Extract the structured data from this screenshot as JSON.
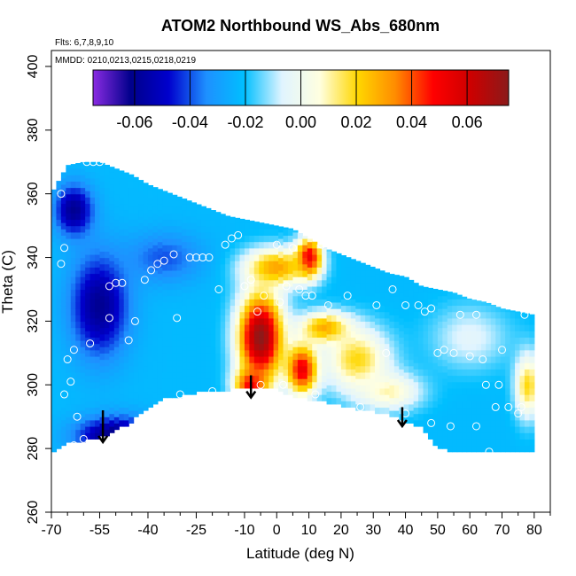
{
  "chart_data": {
    "type": "heatmap",
    "title": "ATOM2 Northbound WS_Abs_680nm",
    "annotations": [
      "Flts: 6,7,8,9,10",
      "MMDD: 0210,0213,0215,0218,0219"
    ],
    "xlabel": "Latitude (deg N)",
    "ylabel": "Theta (C)",
    "xlim": [
      -70,
      85
    ],
    "ylim": [
      260,
      405
    ],
    "x_ticks": [
      -70,
      -55,
      -40,
      -25,
      -10,
      0,
      10,
      20,
      30,
      40,
      50,
      60,
      70,
      80
    ],
    "x_minor_ticks": [
      -65,
      -60,
      -50,
      -45,
      -35,
      -30,
      -20,
      -15,
      -5,
      5,
      15,
      25,
      35,
      45,
      55,
      65,
      75,
      85
    ],
    "y_ticks": [
      260,
      280,
      300,
      320,
      340,
      360,
      380,
      400
    ],
    "colorbar": {
      "min": -0.075,
      "max": 0.075,
      "ticks": [
        -0.06,
        -0.04,
        -0.02,
        0.0,
        0.02,
        0.04,
        0.06
      ],
      "tick_labels": [
        "-0.06",
        "-0.04",
        "-0.02",
        "0.00",
        "0.02",
        "0.04",
        "0.06"
      ],
      "colors": [
        "#8a2be2",
        "#00008b",
        "#0000cd",
        "#1e90ff",
        "#00bfff",
        "#e0f4ff",
        "#ffffe0",
        "#ffd700",
        "#ff8c00",
        "#ff0000",
        "#cc0000",
        "#8b1a1a"
      ]
    },
    "grid": false,
    "color_field": {
      "x": [
        -70,
        -65,
        -60,
        -55,
        -50,
        -45,
        -40,
        -35,
        -30,
        -25,
        -20,
        -15,
        -10,
        -5,
        0,
        5,
        10,
        15,
        20,
        25,
        30,
        35,
        40,
        45,
        50,
        55,
        60,
        65,
        70,
        75,
        80
      ],
      "y": [
        280,
        285,
        290,
        295,
        300,
        305,
        310,
        315,
        320,
        325,
        330,
        335,
        340,
        345,
        350,
        355,
        360,
        365,
        370
      ],
      "top_theta": [
        360,
        369,
        370,
        370,
        368,
        366,
        363,
        361,
        359,
        357,
        355,
        353,
        352,
        351,
        350,
        349,
        346,
        343,
        341,
        339,
        337,
        335,
        334,
        331,
        330,
        329,
        327,
        326,
        324,
        323,
        322
      ],
      "bottom_theta": [
        279,
        282,
        283,
        284,
        286,
        289,
        293,
        296,
        297,
        298,
        298,
        299,
        299,
        299,
        299,
        297,
        296,
        295,
        294,
        293,
        292,
        291,
        289,
        287,
        281,
        279,
        279,
        279,
        279,
        279,
        279
      ],
      "background_value": -0.022,
      "features": [
        {
          "lon": -55,
          "theta": 325,
          "value": -0.06,
          "rx": 9,
          "ry": 16
        },
        {
          "lon": -63,
          "theta": 355,
          "value": -0.06,
          "rx": 6,
          "ry": 8
        },
        {
          "lon": -50,
          "theta": 284,
          "value": -0.065,
          "rx": 12,
          "ry": 6
        },
        {
          "lon": -35,
          "theta": 340,
          "value": -0.04,
          "rx": 12,
          "ry": 8
        },
        {
          "lon": -5,
          "theta": 315,
          "value": 0.075,
          "rx": 7,
          "ry": 14
        },
        {
          "lon": -8,
          "theta": 300,
          "value": 0.05,
          "rx": 5,
          "ry": 5
        },
        {
          "lon": 8,
          "theta": 305,
          "value": 0.055,
          "rx": 5,
          "ry": 8
        },
        {
          "lon": 10,
          "theta": 340,
          "value": 0.06,
          "rx": 4,
          "ry": 6
        },
        {
          "lon": 0,
          "theta": 337,
          "value": 0.03,
          "rx": 10,
          "ry": 6
        },
        {
          "lon": 15,
          "theta": 318,
          "value": 0.03,
          "rx": 8,
          "ry": 5
        },
        {
          "lon": 25,
          "theta": 308,
          "value": 0.02,
          "rx": 10,
          "ry": 10
        },
        {
          "lon": 35,
          "theta": 298,
          "value": 0.01,
          "rx": 10,
          "ry": 6
        },
        {
          "lon": 78,
          "theta": 300,
          "value": 0.02,
          "rx": 4,
          "ry": 10
        },
        {
          "lon": 60,
          "theta": 315,
          "value": -0.005,
          "rx": 12,
          "ry": 10
        }
      ]
    },
    "sample_points": [
      {
        "x": -67,
        "y": 360
      },
      {
        "x": -66,
        "y": 343
      },
      {
        "x": -67,
        "y": 338
      },
      {
        "x": -65,
        "y": 308
      },
      {
        "x": -66,
        "y": 297
      },
      {
        "x": -64,
        "y": 301
      },
      {
        "x": -63,
        "y": 311
      },
      {
        "x": -62,
        "y": 290
      },
      {
        "x": -60,
        "y": 283
      },
      {
        "x": -63,
        "y": 281
      },
      {
        "x": -57,
        "y": 370
      },
      {
        "x": -59,
        "y": 370
      },
      {
        "x": -55,
        "y": 370
      },
      {
        "x": -58,
        "y": 313
      },
      {
        "x": -52,
        "y": 331
      },
      {
        "x": -50,
        "y": 332
      },
      {
        "x": -48,
        "y": 332
      },
      {
        "x": -46,
        "y": 314
      },
      {
        "x": -44,
        "y": 320
      },
      {
        "x": -52,
        "y": 321
      },
      {
        "x": -43,
        "y": 286
      },
      {
        "x": -41,
        "y": 333
      },
      {
        "x": -39,
        "y": 336
      },
      {
        "x": -37,
        "y": 338
      },
      {
        "x": -35,
        "y": 339
      },
      {
        "x": -32,
        "y": 341
      },
      {
        "x": -31,
        "y": 321
      },
      {
        "x": -30,
        "y": 297
      },
      {
        "x": -27,
        "y": 340
      },
      {
        "x": -25,
        "y": 340
      },
      {
        "x": -23,
        "y": 340
      },
      {
        "x": -21,
        "y": 340
      },
      {
        "x": -20,
        "y": 298
      },
      {
        "x": -18,
        "y": 330
      },
      {
        "x": -16,
        "y": 344
      },
      {
        "x": -14,
        "y": 346
      },
      {
        "x": -12,
        "y": 347
      },
      {
        "x": -10,
        "y": 331
      },
      {
        "x": -8,
        "y": 333
      },
      {
        "x": -6,
        "y": 323
      },
      {
        "x": -4,
        "y": 328
      },
      {
        "x": -5,
        "y": 300
      },
      {
        "x": 0,
        "y": 344
      },
      {
        "x": 1,
        "y": 326
      },
      {
        "x": 2,
        "y": 300
      },
      {
        "x": 3,
        "y": 331
      },
      {
        "x": 5,
        "y": 343
      },
      {
        "x": 7,
        "y": 330
      },
      {
        "x": 9,
        "y": 328
      },
      {
        "x": 11,
        "y": 328
      },
      {
        "x": 12,
        "y": 297
      },
      {
        "x": 14,
        "y": 344
      },
      {
        "x": 16,
        "y": 325
      },
      {
        "x": 20,
        "y": 344
      },
      {
        "x": 22,
        "y": 328
      },
      {
        "x": 26,
        "y": 293
      },
      {
        "x": 31,
        "y": 325
      },
      {
        "x": 36,
        "y": 330
      },
      {
        "x": 40,
        "y": 291
      },
      {
        "x": 44,
        "y": 325
      },
      {
        "x": 46,
        "y": 323
      },
      {
        "x": 48,
        "y": 324
      },
      {
        "x": 50,
        "y": 310
      },
      {
        "x": 52,
        "y": 311
      },
      {
        "x": 54,
        "y": 287
      },
      {
        "x": 55,
        "y": 310
      },
      {
        "x": 57,
        "y": 322
      },
      {
        "x": 60,
        "y": 309
      },
      {
        "x": 62,
        "y": 287
      },
      {
        "x": 64,
        "y": 308
      },
      {
        "x": 65,
        "y": 300
      },
      {
        "x": 68,
        "y": 293
      },
      {
        "x": 69,
        "y": 300
      },
      {
        "x": 70,
        "y": 311
      },
      {
        "x": 72,
        "y": 293
      },
      {
        "x": 75,
        "y": 291
      },
      {
        "x": 76,
        "y": 293
      },
      {
        "x": 77,
        "y": 322
      },
      {
        "x": 66,
        "y": 279
      },
      {
        "x": 62,
        "y": 322
      },
      {
        "x": 48,
        "y": 288
      },
      {
        "x": 40,
        "y": 325
      },
      {
        "x": 34,
        "y": 310
      }
    ],
    "arrows": [
      {
        "x": -54,
        "y_from": 292,
        "y_to": 282
      },
      {
        "x": -8,
        "y_from": 303,
        "y_to": 296
      },
      {
        "x": 39,
        "y_from": 293,
        "y_to": 287
      }
    ]
  }
}
